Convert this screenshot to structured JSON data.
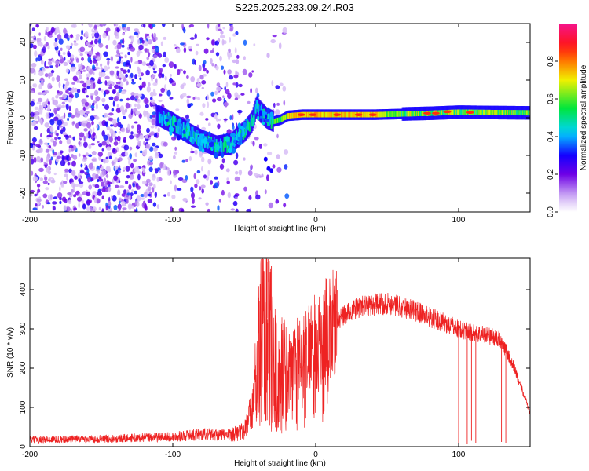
{
  "title": "S225.2025.283.09.24.R03",
  "chart_data": [
    {
      "type": "heatmap",
      "name": "dynamic-spectrum",
      "xlabel": "Height of straight line (km)",
      "ylabel": "Frequency (Hz)",
      "xlim": [
        -200,
        150
      ],
      "ylim": [
        -25,
        25
      ],
      "xticks": [
        -200,
        -100,
        0,
        100
      ],
      "xtick_labels": [
        "-200",
        "-100",
        "0",
        "100"
      ],
      "yticks": [
        -20,
        -10,
        0,
        10,
        20
      ],
      "ytick_labels": [
        "-20",
        "-10",
        "0",
        "10",
        "20"
      ],
      "colorbar": {
        "label": "Normalized spectral amplitude",
        "range": [
          0.0,
          1.0
        ],
        "ticks": [
          0.0,
          0.2,
          0.4,
          0.6,
          0.8
        ],
        "tick_labels": [
          "0.0",
          "0.2",
          "0.4",
          "0.6",
          "0.8"
        ]
      },
      "carrier_trace": {
        "x": [
          -110,
          -100,
          -90,
          -80,
          -70,
          -60,
          -55,
          -50,
          -45,
          -42,
          -40,
          -35,
          -30,
          -25,
          -20,
          -10,
          0,
          20,
          40,
          60,
          80,
          100,
          120,
          150
        ],
        "y": [
          0.5,
          -1.5,
          -4,
          -6,
          -7.5,
          -7,
          -5,
          -3.5,
          -1,
          3,
          2,
          0,
          -1,
          -0.5,
          0.5,
          0.8,
          0.8,
          0.8,
          0.8,
          1.0,
          1.2,
          1.5,
          1.4,
          1.3
        ]
      }
    },
    {
      "type": "line",
      "name": "snr",
      "xlabel": "Height of straight line (km)",
      "ylabel": "SNR (10 * v/v)",
      "xlim": [
        -200,
        150
      ],
      "ylim": [
        0,
        480
      ],
      "xticks": [
        -200,
        -100,
        0,
        100
      ],
      "xtick_labels": [
        "-200",
        "-100",
        "0",
        "100"
      ],
      "yticks": [
        0,
        100,
        200,
        300,
        400
      ],
      "ytick_labels": [
        "0",
        "100",
        "200",
        "300",
        "400"
      ],
      "color": "#ee2222",
      "envelope": {
        "x": [
          -200,
          -150,
          -100,
          -80,
          -60,
          -50,
          -45,
          -40,
          -35,
          -30,
          -25,
          -20,
          -10,
          0,
          10,
          20,
          30,
          40,
          50,
          60,
          70,
          80,
          90,
          100,
          110,
          120,
          130,
          140,
          150
        ],
        "y": [
          18,
          20,
          25,
          32,
          30,
          40,
          90,
          240,
          360,
          200,
          170,
          200,
          245,
          275,
          305,
          335,
          355,
          362,
          365,
          358,
          345,
          330,
          315,
          300,
          290,
          285,
          270,
          190,
          85
        ]
      },
      "spikes": [
        {
          "x": -37,
          "y": 420
        },
        {
          "x": -34,
          "y": 470
        },
        {
          "x": -31,
          "y": 460
        },
        {
          "x": 15,
          "y": 400
        },
        {
          "x": 100,
          "y": 10
        },
        {
          "x": 103,
          "y": 12
        },
        {
          "x": 106,
          "y": 8
        },
        {
          "x": 109,
          "y": 15
        },
        {
          "x": 112,
          "y": 10
        },
        {
          "x": 130,
          "y": 12
        },
        {
          "x": 133,
          "y": 10
        }
      ]
    }
  ]
}
